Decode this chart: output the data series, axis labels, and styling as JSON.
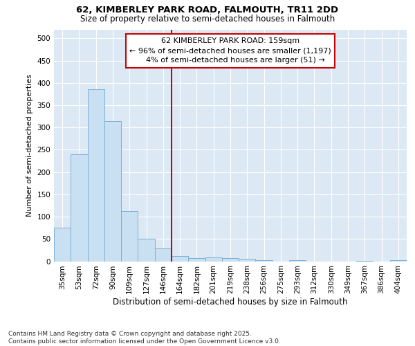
{
  "title_line1": "62, KIMBERLEY PARK ROAD, FALMOUTH, TR11 2DD",
  "title_line2": "Size of property relative to semi-detached houses in Falmouth",
  "xlabel": "Distribution of semi-detached houses by size in Falmouth",
  "ylabel": "Number of semi-detached properties",
  "categories": [
    "35sqm",
    "53sqm",
    "72sqm",
    "90sqm",
    "109sqm",
    "127sqm",
    "146sqm",
    "164sqm",
    "182sqm",
    "201sqm",
    "219sqm",
    "238sqm",
    "256sqm",
    "275sqm",
    "293sqm",
    "312sqm",
    "330sqm",
    "349sqm",
    "367sqm",
    "386sqm",
    "404sqm"
  ],
  "values": [
    75,
    240,
    385,
    315,
    113,
    50,
    29,
    12,
    7,
    8,
    7,
    5,
    3,
    0,
    3,
    0,
    0,
    0,
    1,
    0,
    2
  ],
  "bar_color": "#c9dff2",
  "bar_edge_color": "#7ab0d4",
  "vline_x": 7,
  "annotation_line1": "62 KIMBERLEY PARK ROAD: 159sqm",
  "annotation_line2": "← 96% of semi-detached houses are smaller (1,197)",
  "annotation_line3": "    4% of semi-detached houses are larger (51) →",
  "annotation_box_color": "#ffffff",
  "annotation_box_edge": "#cc0000",
  "footer_line1": "Contains HM Land Registry data © Crown copyright and database right 2025.",
  "footer_line2": "Contains public sector information licensed under the Open Government Licence v3.0.",
  "fig_bg_color": "#ffffff",
  "plot_bg_color": "#dce9f5",
  "grid_color": "#ffffff",
  "ylim": [
    0,
    520
  ],
  "yticks": [
    0,
    50,
    100,
    150,
    200,
    250,
    300,
    350,
    400,
    450,
    500
  ],
  "title1_fontsize": 9.5,
  "title2_fontsize": 8.5,
  "tick_fontsize": 7.5,
  "ylabel_fontsize": 8,
  "xlabel_fontsize": 8.5,
  "footer_fontsize": 6.5,
  "ann_fontsize": 8
}
